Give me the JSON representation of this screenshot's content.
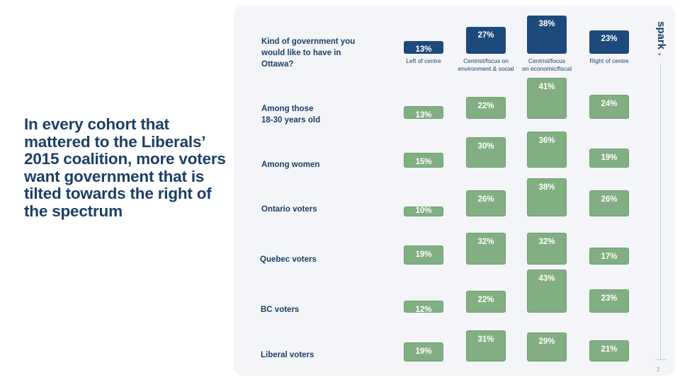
{
  "headline": "In every cohort that mattered to the Liberals’ 2015 coalition, more voters want government that is tilted towards the right of the spectrum",
  "brand": {
    "name": "spark",
    "star": "*"
  },
  "page_number": "2",
  "chart_data": {
    "type": "bar",
    "title": "",
    "categories": [
      "Left of centre",
      "Centrist/focus on\nenvironment & social",
      "Centrist/focus\non economic/fiscal",
      "Right of centre"
    ],
    "series": [
      {
        "name": "Kind of government you\nwould like to have in\nOttawa?",
        "values": [
          13,
          27,
          38,
          23
        ]
      },
      {
        "name": "Among those\n18-30 years old",
        "values": [
          13,
          22,
          41,
          24
        ]
      },
      {
        "name": "Among women",
        "values": [
          15,
          30,
          36,
          19
        ]
      },
      {
        "name": "Ontario voters",
        "values": [
          10,
          26,
          38,
          26
        ]
      },
      {
        "name": "Quebec voters",
        "values": [
          19,
          32,
          32,
          17
        ]
      },
      {
        "name": "BC voters",
        "values": [
          12,
          22,
          43,
          23
        ]
      },
      {
        "name": "Liberal voters",
        "values": [
          19,
          31,
          29,
          21
        ]
      }
    ],
    "value_suffix": "%",
    "legend": "none",
    "grid": false,
    "colors": {
      "overall": "#1e4a7b",
      "cohorts": "#82af82"
    }
  }
}
